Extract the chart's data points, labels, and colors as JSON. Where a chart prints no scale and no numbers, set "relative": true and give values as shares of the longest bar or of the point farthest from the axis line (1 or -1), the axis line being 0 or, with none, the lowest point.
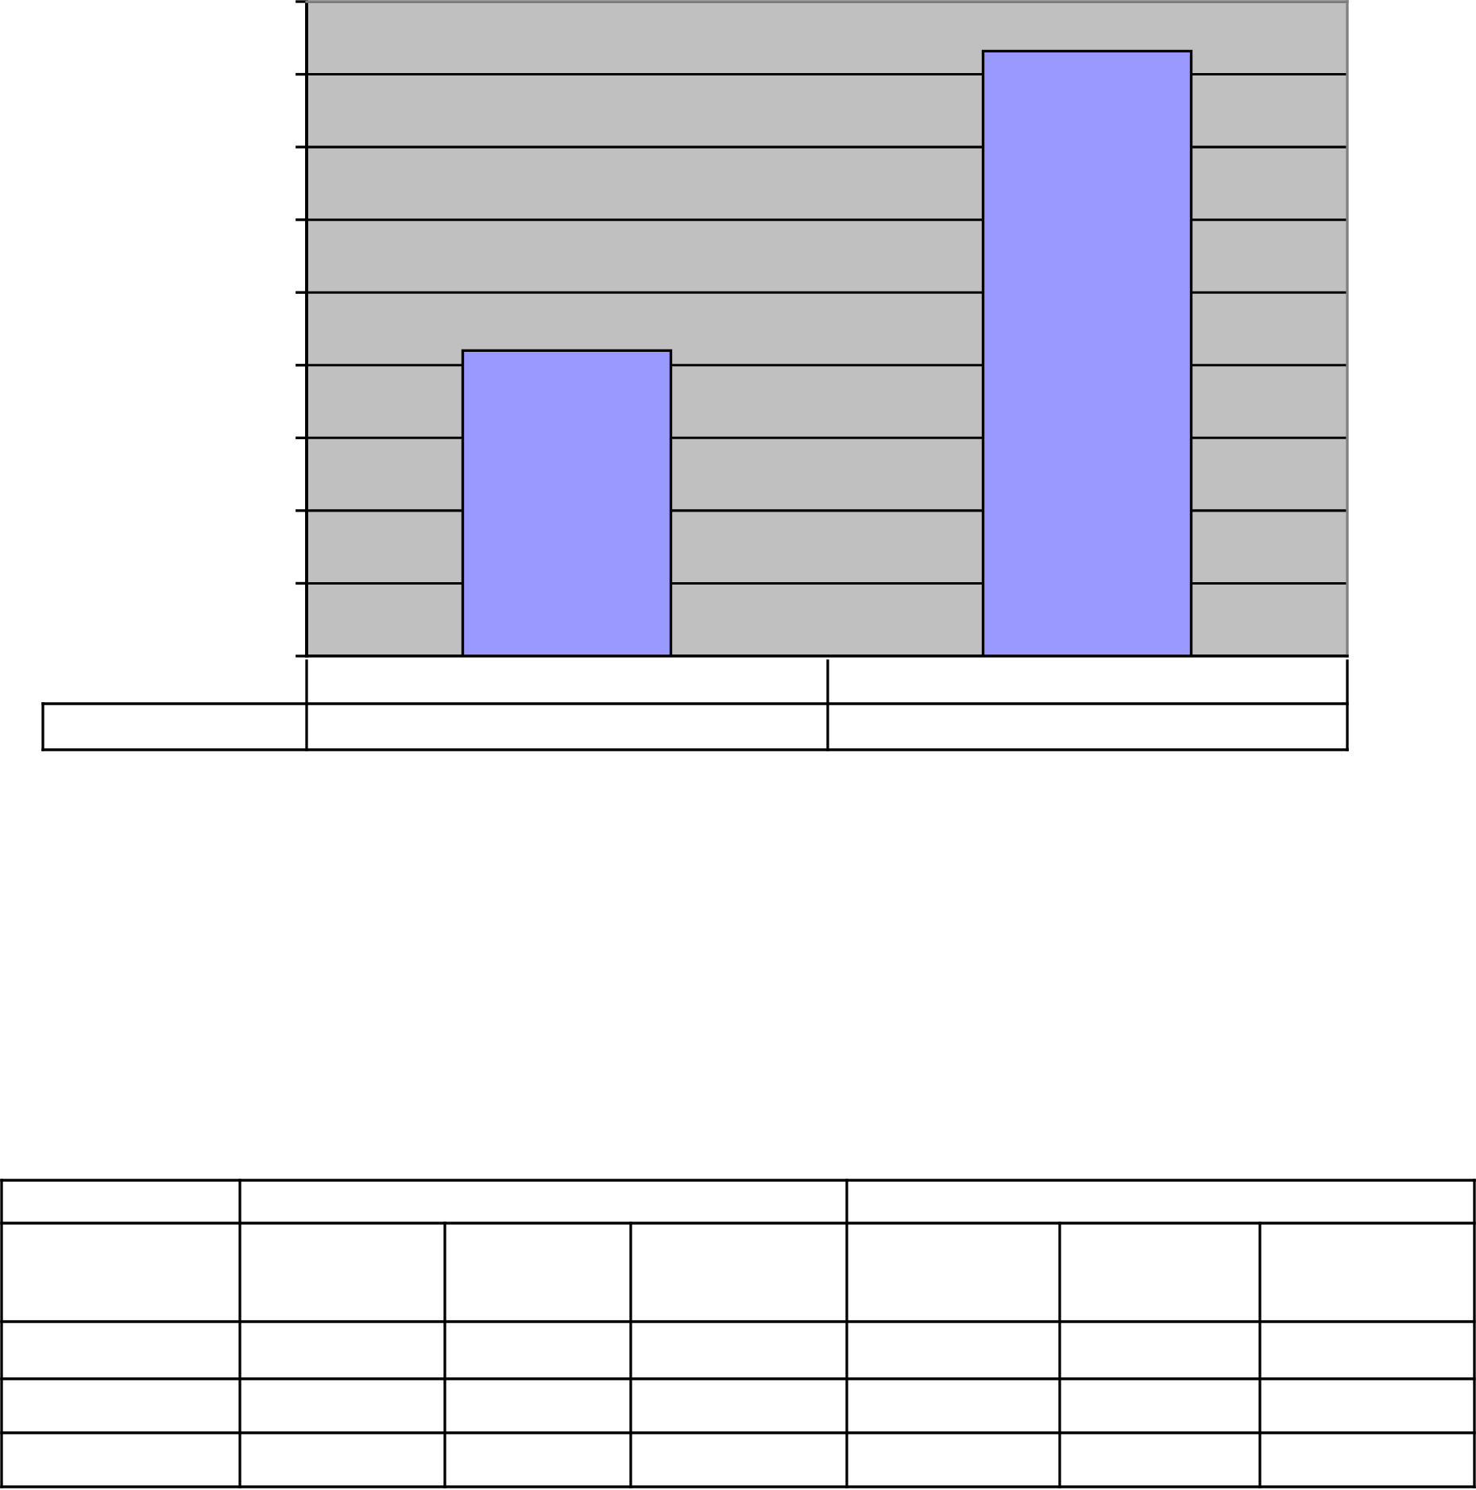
{
  "chart_data": {
    "type": "bar",
    "categories": [
      null,
      null
    ],
    "values": [
      0.505,
      1
    ],
    "color": "#9999ff",
    "relative": true,
    "grid": "y"
  }
}
